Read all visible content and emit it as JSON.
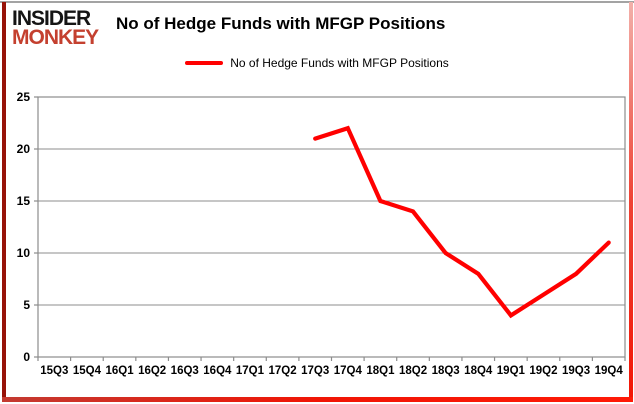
{
  "branding": {
    "logo_line1": "INSIDER",
    "logo_line2": "MONKEY",
    "logo_color_primary": "#151515",
    "logo_color_secondary": "#c4402f"
  },
  "header": {
    "title": "No of Hedge Funds with MFGP Positions"
  },
  "legend": {
    "label": "No of Hedge Funds with MFGP Positions",
    "line_color": "#ff0000"
  },
  "chart_data": {
    "type": "line",
    "title": "No of Hedge Funds with MFGP Positions",
    "categories": [
      "15Q3",
      "15Q4",
      "16Q1",
      "16Q2",
      "16Q3",
      "16Q4",
      "17Q1",
      "17Q2",
      "17Q3",
      "17Q4",
      "18Q1",
      "18Q2",
      "18Q3",
      "18Q4",
      "19Q1",
      "19Q2",
      "19Q3",
      "19Q4"
    ],
    "series": [
      {
        "name": "No of Hedge Funds with MFGP Positions",
        "color": "#ff0000",
        "values": [
          null,
          null,
          null,
          null,
          null,
          null,
          null,
          null,
          21,
          22,
          15,
          14,
          10,
          8,
          4,
          6,
          8,
          11
        ]
      }
    ],
    "xlabel": "",
    "ylabel": "",
    "ylim": [
      0,
      25
    ],
    "ytick_interval": 5,
    "grid": true,
    "legend_position": "top",
    "gridline_color": "#8c8c8c",
    "axis_text_color": "#000000"
  }
}
